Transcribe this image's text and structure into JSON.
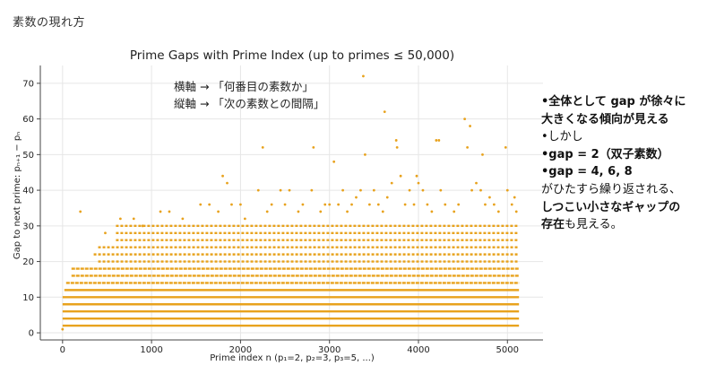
{
  "slide": {
    "title": "素数の現れ方"
  },
  "annotation": {
    "line1": "横軸 → 「何番目の素数か」",
    "line2": "縦軸 → 「次の素数との間隔」"
  },
  "notes": {
    "l1": "•全体として gap が徐々に",
    "l2": "大きくなる傾向が見える",
    "l3": "•しかし",
    "l4": "•gap = 2（双子素数）",
    "l5": "•gap = 4, 6, 8",
    "l6": "がひたすら繰り返される、",
    "l7a": "しつこい小さなギャップの",
    "l8a": "存在",
    "l8b": "も見える。"
  },
  "colors": {
    "points": "#e8a21d",
    "axis": "#444444",
    "grid": "#e6e6e6"
  },
  "chart_data": {
    "type": "scatter",
    "title": "Prime Gaps with Prime Index (up to primes ≤ 50,000)",
    "xlabel": "Prime index n (p₁=2, p₂=3, p₃=5, ...)",
    "ylabel": "Gap to next prime: pₙ₊₁ − pₙ",
    "xlim": [
      -250,
      5400
    ],
    "ylim": [
      -2,
      75
    ],
    "xticks": [
      0,
      1000,
      2000,
      3000,
      4000,
      5000
    ],
    "yticks": [
      0,
      10,
      20,
      30,
      40,
      50,
      60,
      70
    ],
    "grid": true,
    "n_primes": 5133,
    "dense_bands": [
      {
        "gap": 2,
        "from": 0,
        "to": 5130
      },
      {
        "gap": 4,
        "from": 0,
        "to": 5130
      },
      {
        "gap": 6,
        "from": 0,
        "to": 5130
      },
      {
        "gap": 8,
        "from": 0,
        "to": 5130
      },
      {
        "gap": 10,
        "from": 0,
        "to": 5130
      },
      {
        "gap": 12,
        "from": 20,
        "to": 5130
      },
      {
        "gap": 14,
        "from": 40,
        "to": 5130
      },
      {
        "gap": 16,
        "from": 100,
        "to": 5130
      },
      {
        "gap": 18,
        "from": 100,
        "to": 5130
      },
      {
        "gap": 20,
        "from": 400,
        "to": 5130
      },
      {
        "gap": 22,
        "from": 350,
        "to": 5130
      },
      {
        "gap": 24,
        "from": 400,
        "to": 5130
      },
      {
        "gap": 26,
        "from": 600,
        "to": 5130
      },
      {
        "gap": 28,
        "from": 600,
        "to": 5130
      },
      {
        "gap": 30,
        "from": 600,
        "to": 5130
      }
    ],
    "outliers": [
      [
        0,
        1
      ],
      [
        200,
        34
      ],
      [
        480,
        28
      ],
      [
        650,
        32
      ],
      [
        800,
        32
      ],
      [
        900,
        30
      ],
      [
        1100,
        34
      ],
      [
        1200,
        34
      ],
      [
        1350,
        32
      ],
      [
        1550,
        36
      ],
      [
        1650,
        36
      ],
      [
        1750,
        34
      ],
      [
        1800,
        44
      ],
      [
        1850,
        42
      ],
      [
        1900,
        36
      ],
      [
        2000,
        36
      ],
      [
        2050,
        32
      ],
      [
        2200,
        40
      ],
      [
        2250,
        52
      ],
      [
        2300,
        34
      ],
      [
        2350,
        36
      ],
      [
        2450,
        40
      ],
      [
        2500,
        36
      ],
      [
        2550,
        40
      ],
      [
        2650,
        34
      ],
      [
        2700,
        36
      ],
      [
        2800,
        40
      ],
      [
        2820,
        52
      ],
      [
        2900,
        34
      ],
      [
        2950,
        36
      ],
      [
        3000,
        36
      ],
      [
        3050,
        48
      ],
      [
        3100,
        36
      ],
      [
        3150,
        40
      ],
      [
        3200,
        34
      ],
      [
        3250,
        36
      ],
      [
        3300,
        38
      ],
      [
        3350,
        40
      ],
      [
        3380,
        72
      ],
      [
        3400,
        50
      ],
      [
        3450,
        36
      ],
      [
        3500,
        40
      ],
      [
        3550,
        36
      ],
      [
        3600,
        34
      ],
      [
        3620,
        62
      ],
      [
        3650,
        38
      ],
      [
        3700,
        42
      ],
      [
        3750,
        54
      ],
      [
        3760,
        52
      ],
      [
        3800,
        44
      ],
      [
        3850,
        36
      ],
      [
        3900,
        40
      ],
      [
        3950,
        36
      ],
      [
        3980,
        44
      ],
      [
        4000,
        42
      ],
      [
        4050,
        40
      ],
      [
        4100,
        36
      ],
      [
        4150,
        34
      ],
      [
        4200,
        54
      ],
      [
        4230,
        54
      ],
      [
        4250,
        40
      ],
      [
        4300,
        36
      ],
      [
        4400,
        34
      ],
      [
        4450,
        36
      ],
      [
        4520,
        60
      ],
      [
        4550,
        52
      ],
      [
        4580,
        58
      ],
      [
        4600,
        40
      ],
      [
        4650,
        42
      ],
      [
        4700,
        40
      ],
      [
        4720,
        50
      ],
      [
        4750,
        36
      ],
      [
        4800,
        38
      ],
      [
        4850,
        36
      ],
      [
        4900,
        34
      ],
      [
        4980,
        52
      ],
      [
        5000,
        40
      ],
      [
        5050,
        36
      ],
      [
        5080,
        38
      ],
      [
        5100,
        34
      ]
    ]
  }
}
